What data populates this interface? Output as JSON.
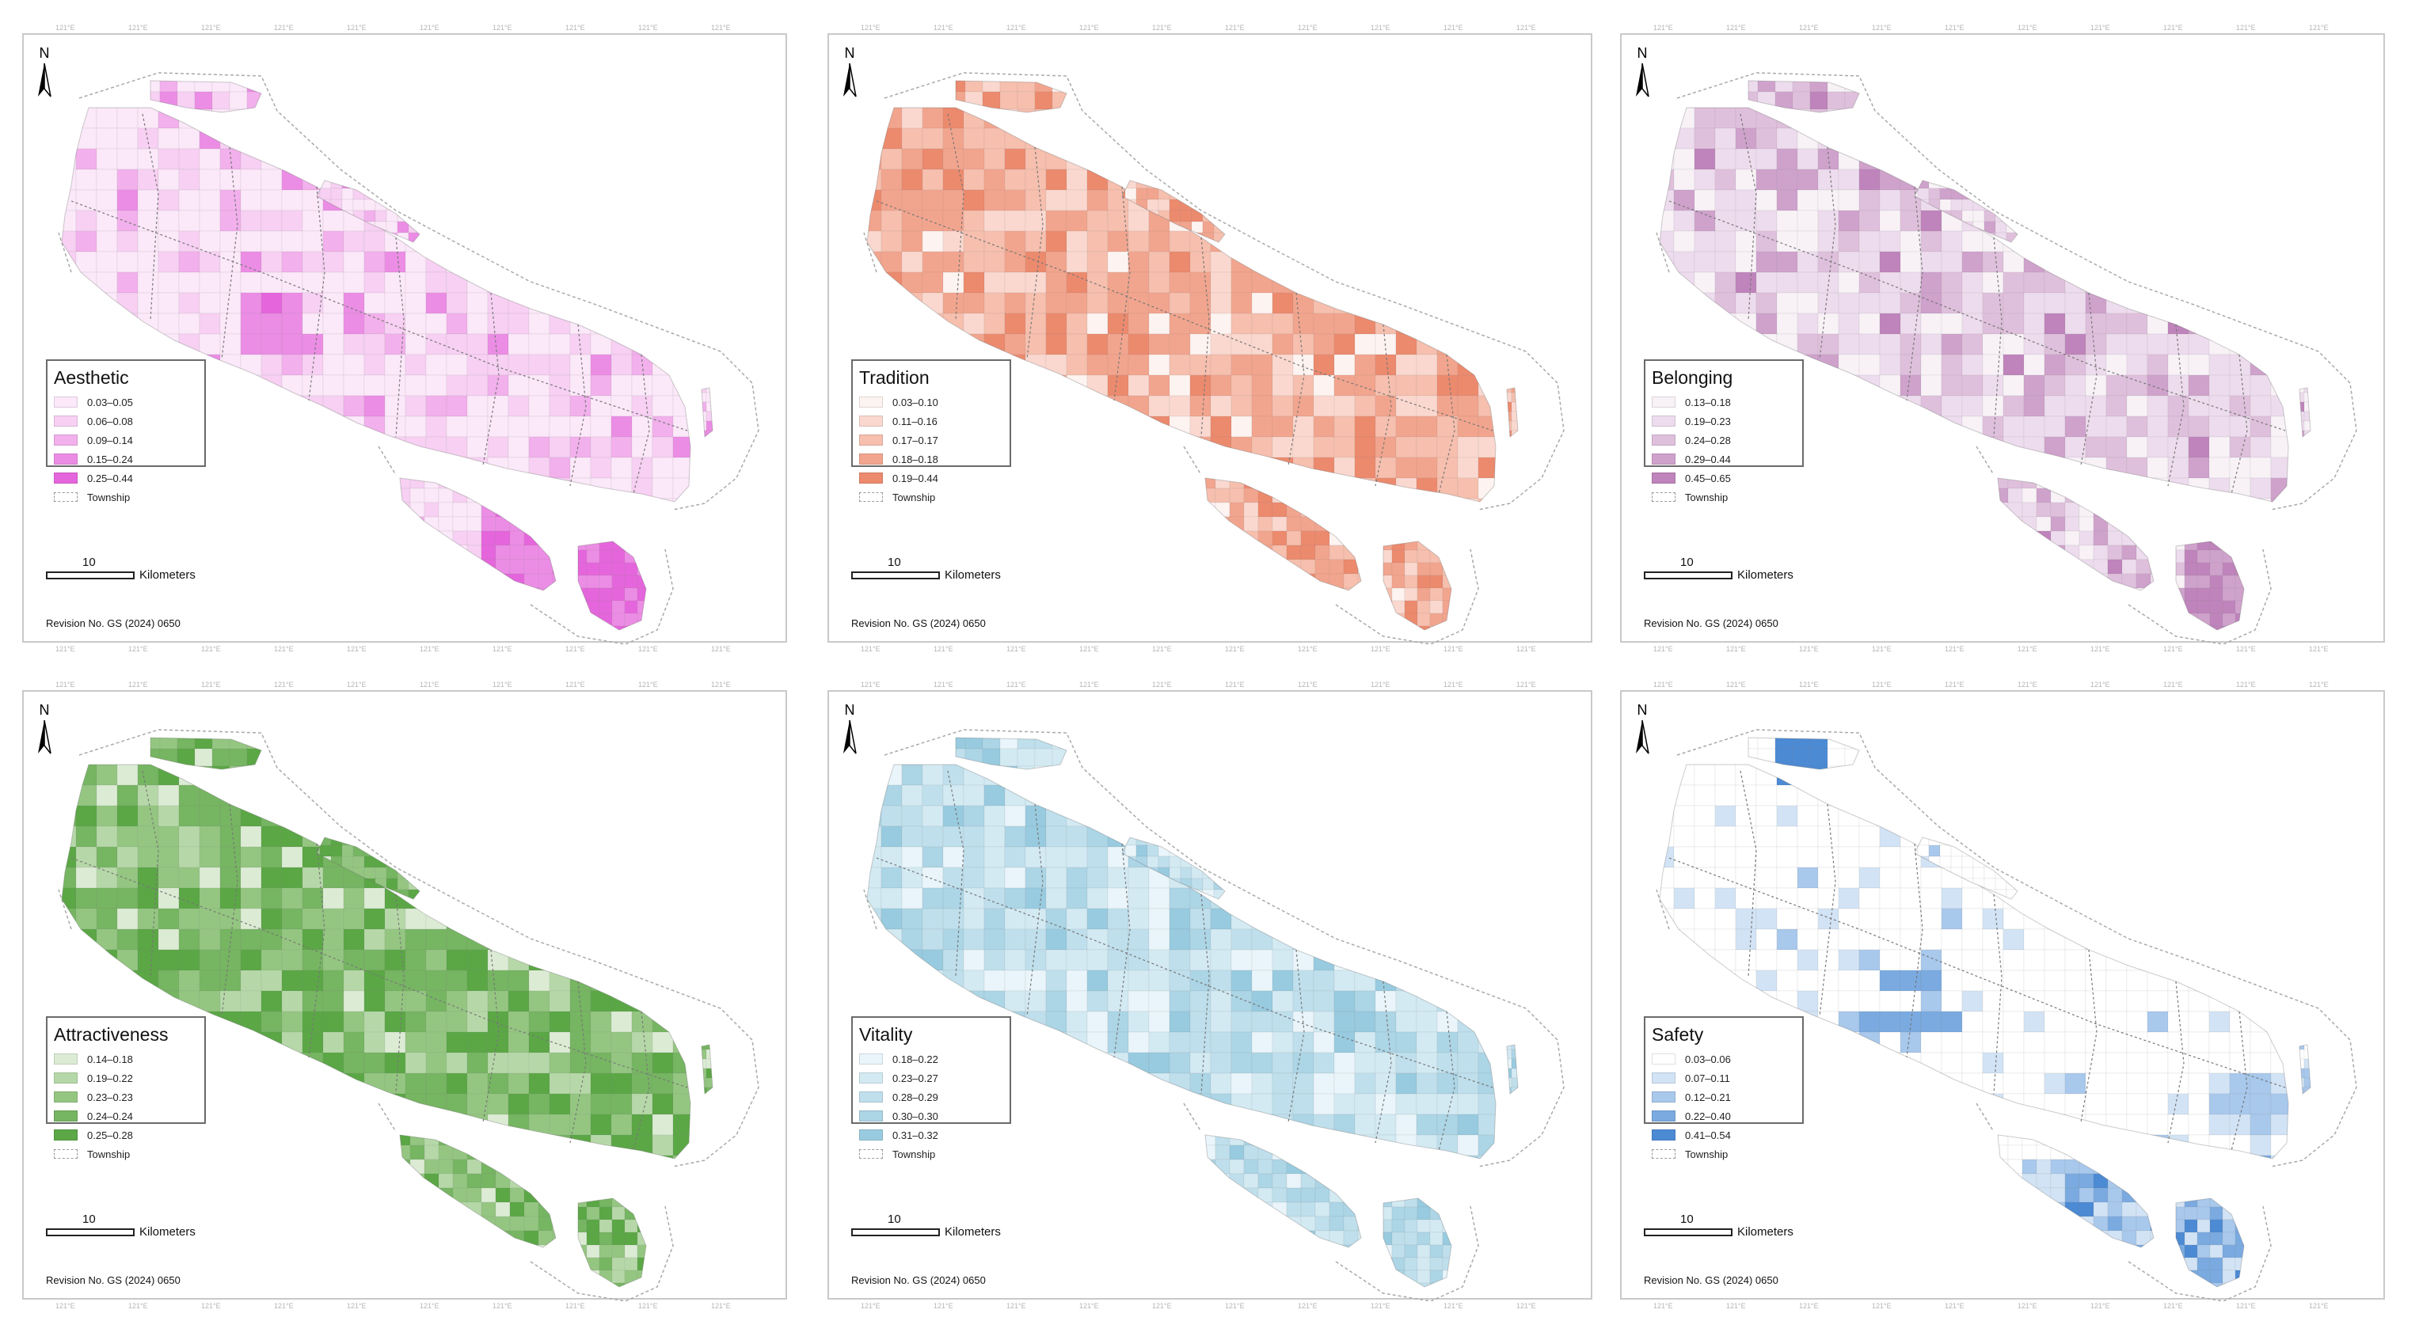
{
  "north_label": "N",
  "scale": {
    "value": "10",
    "unit": "Kilometers"
  },
  "revision": "Revision No. GS (2024) 0650",
  "township_label": "Township",
  "tick_label": "121°E",
  "maps": [
    {
      "id": "aesthetic",
      "title": "Aesthetic",
      "colors": [
        "#fbe8f9",
        "#f7d0f3",
        "#f2b0ec",
        "#ec8de5",
        "#e566dc"
      ],
      "classes": [
        "0.03–0.05",
        "0.06–0.08",
        "0.09–0.14",
        "0.15–0.24",
        "0.25–0.44"
      ]
    },
    {
      "id": "tradition",
      "title": "Tradition",
      "colors": [
        "#fdf3f0",
        "#fad8cf",
        "#f6bfae",
        "#f2a58e",
        "#ec8a6e"
      ],
      "classes": [
        "0.03–0.10",
        "0.11–0.16",
        "0.17–0.17",
        "0.18–0.18",
        "0.19–0.44"
      ]
    },
    {
      "id": "belonging",
      "title": "Belonging",
      "colors": [
        "#f8f2f7",
        "#eddced",
        "#dfc0dc",
        "#cfa2cc",
        "#bf84bb"
      ],
      "classes": [
        "0.13–0.18",
        "0.19–0.23",
        "0.24–0.28",
        "0.29–0.44",
        "0.45–0.65"
      ]
    },
    {
      "id": "attractiveness",
      "title": "Attractiveness",
      "colors": [
        "#dcebd4",
        "#b6d8a8",
        "#94c681",
        "#76b562",
        "#5ba746"
      ],
      "classes": [
        "0.14–0.18",
        "0.19–0.22",
        "0.23–0.23",
        "0.24–0.24",
        "0.25–0.28"
      ]
    },
    {
      "id": "vitality",
      "title": "Vitality",
      "colors": [
        "#e9f5fa",
        "#d3eaf3",
        "#bfdfec",
        "#acd5e6",
        "#98cbdf"
      ],
      "classes": [
        "0.18–0.22",
        "0.23–0.27",
        "0.28–0.29",
        "0.30–0.30",
        "0.31–0.32"
      ]
    },
    {
      "id": "safety",
      "title": "Safety",
      "colors": [
        "#ffffff",
        "#d2e3f5",
        "#a8c8ec",
        "#7aaae0",
        "#4c8ad4"
      ],
      "classes": [
        "0.03–0.06",
        "0.07–0.11",
        "0.12–0.21",
        "0.22–0.40",
        "0.41–0.54"
      ]
    }
  ]
}
